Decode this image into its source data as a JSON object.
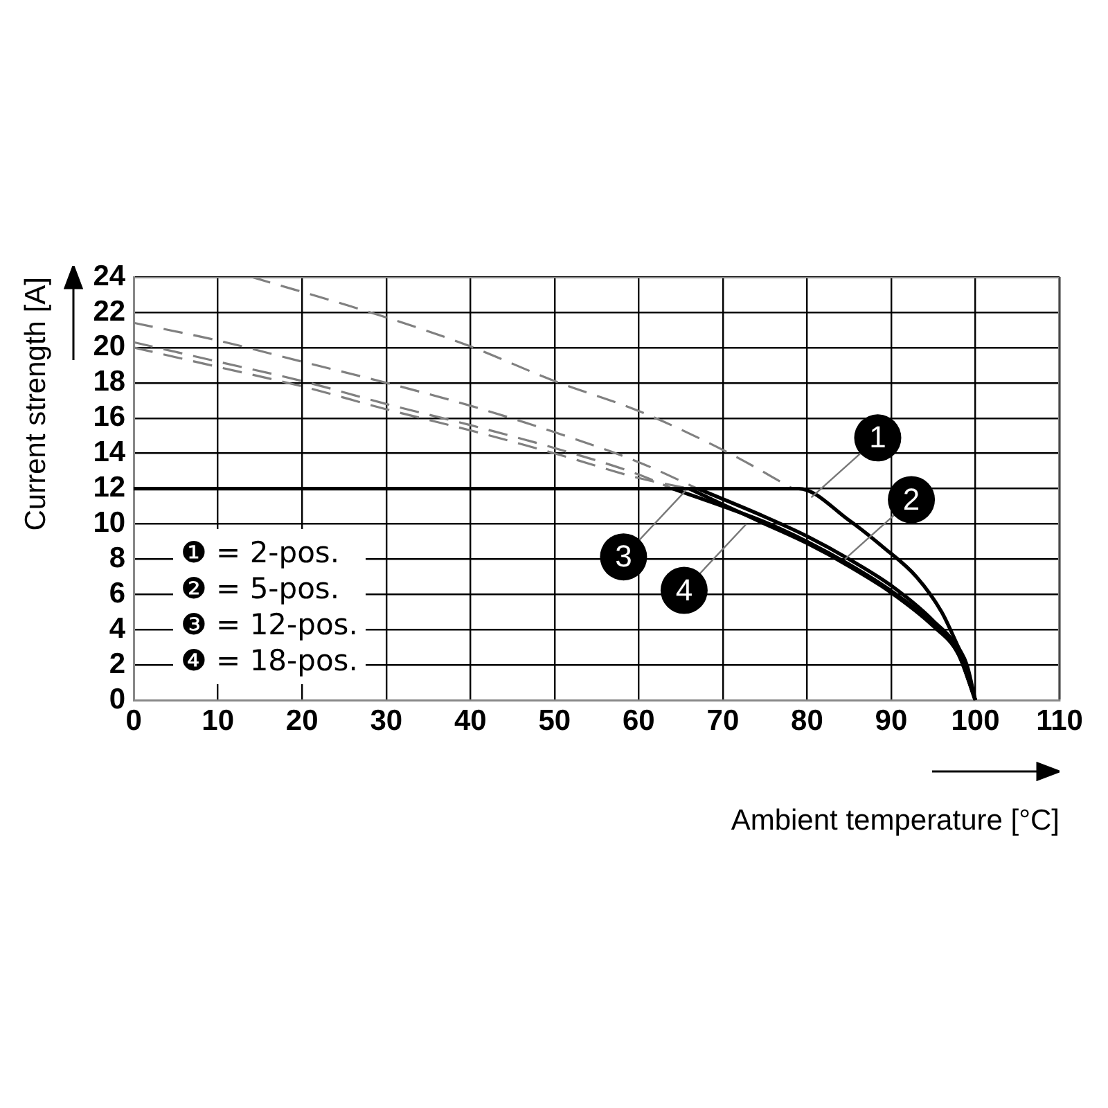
{
  "chart_data": {
    "type": "line",
    "xlabel": "Ambient temperature [°C]",
    "ylabel": "Current strength [A]",
    "xlim": [
      0,
      110
    ],
    "xticks": [
      0,
      10,
      20,
      30,
      40,
      50,
      60,
      70,
      80,
      90,
      100,
      110
    ],
    "ylim": [
      0,
      24
    ],
    "yticks": [
      0,
      2,
      4,
      6,
      8,
      10,
      12,
      14,
      16,
      18,
      20,
      22,
      24
    ],
    "grid": true,
    "marker": "none",
    "series": [
      {
        "color": "#000000",
        "line_style": "solid",
        "x": [
          0,
          79,
          85,
          89,
          93,
          96,
          98,
          99,
          100
        ],
        "values": [
          12,
          12,
          10.2,
          8.7,
          7,
          5,
          3,
          2,
          0
        ]
      },
      {
        "color": "#000000",
        "line_style": "solid",
        "x": [
          67,
          75,
          80,
          85,
          90,
          95,
          98,
          100
        ],
        "values": [
          12,
          10.4,
          9.3,
          8,
          6.5,
          4.5,
          2.8,
          0
        ]
      },
      {
        "color": "#000000",
        "line_style": "solid",
        "x": [
          64,
          70,
          75,
          80,
          85,
          90,
          95,
          98,
          100
        ],
        "values": [
          12,
          11,
          10.1,
          9,
          7.7,
          6.2,
          4.3,
          2.6,
          0
        ]
      },
      {
        "color": "#000000",
        "line_style": "solid",
        "x": [
          66,
          70,
          75,
          80,
          85,
          90,
          95,
          98,
          100
        ],
        "values": [
          12,
          11.1,
          10,
          8.9,
          7.6,
          6.1,
          4.2,
          2.6,
          0
        ]
      },
      {
        "color": "#808080",
        "line_style": "dashed",
        "x": [
          14,
          29.4,
          39.8,
          50,
          60,
          70.8,
          78.3
        ],
        "values": [
          24,
          21.8,
          20.1,
          18.1,
          16.4,
          14,
          12
        ]
      },
      {
        "color": "#808080",
        "line_style": "dashed",
        "x": [
          0,
          10,
          20,
          30,
          40,
          50,
          60,
          67
        ],
        "values": [
          21.4,
          20.4,
          19.2,
          18,
          16.7,
          15.2,
          13.5,
          12
        ]
      },
      {
        "color": "#808080",
        "line_style": "dashed",
        "x": [
          0,
          10,
          20,
          30,
          40,
          50,
          60,
          64
        ],
        "values": [
          20.3,
          19.2,
          18.1,
          16.8,
          15.6,
          14.3,
          12.8,
          12
        ]
      },
      {
        "color": "#808080",
        "line_style": "dashed",
        "x": [
          0,
          10,
          20,
          30,
          40,
          50,
          60,
          66
        ],
        "values": [
          20,
          18.9,
          17.8,
          16.5,
          15.3,
          14,
          12.6,
          12
        ]
      }
    ],
    "annotations": [
      "❶ = 2-pos.",
      "❷ = 5-pos.",
      "❸ = 12-pos.",
      "❹ = 18-pos.",
      {
        "text": "1",
        "x": 80.5,
        "y": 11.5
      },
      {
        "text": "2",
        "x": 84.5,
        "y": 8
      },
      {
        "text": "3",
        "x": 65.6,
        "y": 11.9
      },
      {
        "text": "4",
        "x": 72.8,
        "y": 10
      }
    ]
  }
}
